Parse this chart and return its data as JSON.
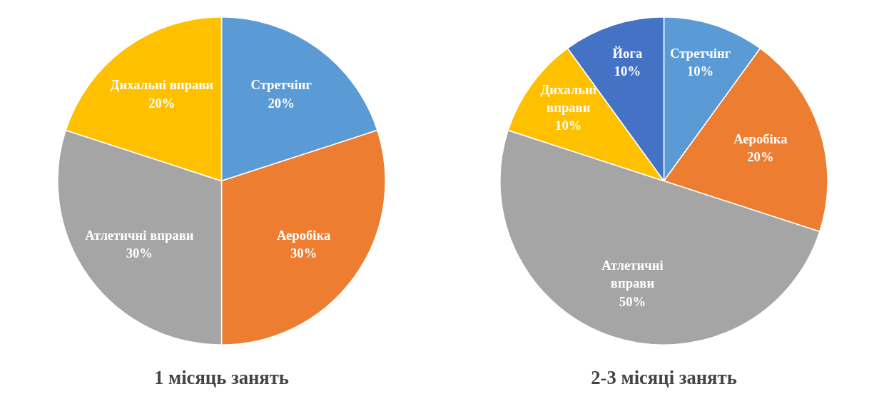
{
  "chart_data": [
    {
      "type": "pie",
      "title": "1 місяць занять",
      "categories": [
        "Стретчінг",
        "Аеробіка",
        "Атлетичні вправи",
        "Дихальні вправи"
      ],
      "values": [
        20,
        30,
        30,
        20
      ],
      "value_labels": [
        "20%",
        "30%",
        "30%",
        "20%"
      ],
      "colors": [
        "#5b9bd5",
        "#ed7d31",
        "#a5a5a5",
        "#ffc000"
      ]
    },
    {
      "type": "pie",
      "title": "2-3 місяці занять",
      "categories": [
        "Стретчінг",
        "Аеробіка",
        "Атлетичні вправи",
        "Дихальні вправи",
        "Йога"
      ],
      "values": [
        10,
        20,
        50,
        10,
        10
      ],
      "value_labels": [
        "10%",
        "20%",
        "50%",
        "10%",
        "10%"
      ],
      "colors": [
        "#5b9bd5",
        "#ed7d31",
        "#a5a5a5",
        "#ffc000",
        "#4472c4"
      ]
    }
  ]
}
